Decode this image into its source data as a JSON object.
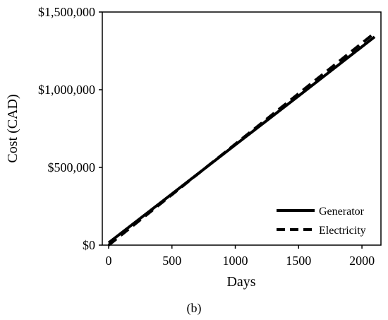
{
  "chart_data": {
    "type": "line",
    "title": "",
    "xlabel": "Days",
    "ylabel": "Cost (CAD)",
    "xlim": [
      -50,
      2150
    ],
    "ylim": [
      0,
      1500000
    ],
    "x_ticks": [
      0,
      500,
      1000,
      1500,
      2000
    ],
    "x_tick_labels": [
      "0",
      "500",
      "1000",
      "1500",
      "2000"
    ],
    "y_ticks": [
      0,
      500000,
      1000000,
      1500000
    ],
    "y_tick_labels": [
      "$0",
      "$500,000",
      "$1,000,000",
      "$1,500,000"
    ],
    "grid": false,
    "legend_position": "bottom-right",
    "series": [
      {
        "name": "Generator",
        "style": "solid",
        "color": "#000000",
        "x": [
          0,
          500,
          1000,
          1500,
          2100
        ],
        "y": [
          15000,
          330000,
          645000,
          960000,
          1340000
        ]
      },
      {
        "name": "Electricity",
        "style": "dashed",
        "color": "#000000",
        "x": [
          0,
          500,
          1000,
          1500,
          2080
        ],
        "y": [
          0,
          325000,
          650000,
          975000,
          1352000
        ]
      }
    ]
  },
  "caption": "(b)"
}
